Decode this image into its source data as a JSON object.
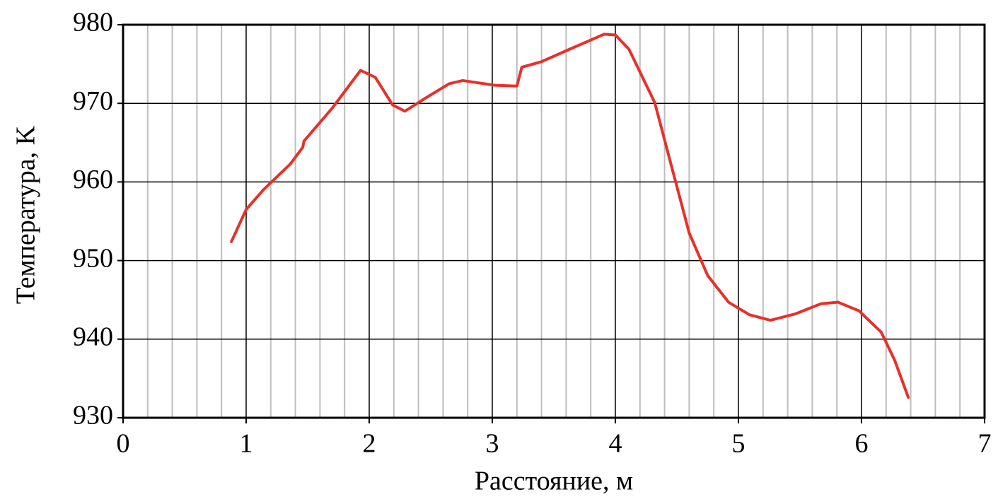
{
  "chart_data": {
    "type": "line",
    "x_label": "Расстояние, м",
    "y_label": "Температура, K",
    "xlim": [
      0,
      7
    ],
    "xticks": [
      0,
      1,
      2,
      3,
      4,
      5,
      6,
      7
    ],
    "xminorticks": [
      0.2,
      0.4,
      0.6,
      0.8,
      1.2,
      1.4,
      1.6,
      1.8,
      2.2,
      2.4,
      2.6,
      2.8,
      3.2,
      3.4,
      3.6,
      3.8,
      4.2,
      4.4,
      4.6,
      4.8,
      5.2,
      5.4,
      5.6,
      5.8,
      6.2,
      6.4,
      6.6,
      6.8
    ],
    "ylim": [
      930,
      980
    ],
    "yticks": [
      930,
      940,
      950,
      960,
      970,
      980
    ],
    "grid": true,
    "series": [
      {
        "color": "#e8302a",
        "x": [
          0.88,
          1.0,
          1.14,
          1.36,
          1.46,
          1.47,
          1.7,
          1.93,
          2.05,
          2.19,
          2.29,
          2.45,
          2.65,
          2.76,
          3.02,
          3.2,
          3.24,
          3.4,
          3.66,
          3.91,
          4.0,
          4.11,
          4.32,
          4.49,
          4.6,
          4.75,
          4.92,
          5.09,
          5.26,
          5.46,
          5.67,
          5.81,
          5.98,
          6.16,
          6.27,
          6.38
        ],
        "values": [
          952.4,
          956.5,
          959.0,
          962.3,
          964.4,
          965.2,
          969.4,
          974.2,
          973.3,
          969.8,
          969.0,
          970.6,
          972.5,
          972.9,
          972.3,
          972.2,
          974.6,
          975.3,
          977.1,
          978.8,
          978.7,
          976.9,
          970.1,
          960.0,
          953.5,
          948.1,
          944.7,
          943.1,
          942.4,
          943.2,
          944.5,
          944.7,
          943.6,
          940.9,
          937.3,
          932.6
        ]
      }
    ]
  }
}
